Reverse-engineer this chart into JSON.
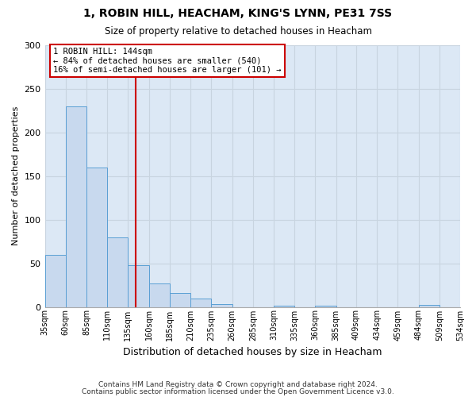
{
  "title": "1, ROBIN HILL, HEACHAM, KING'S LYNN, PE31 7SS",
  "subtitle": "Size of property relative to detached houses in Heacham",
  "xlabel": "Distribution of detached houses by size in Heacham",
  "ylabel": "Number of detached properties",
  "bin_edges": [
    35,
    60,
    85,
    110,
    135,
    160,
    185,
    210,
    235,
    260,
    285,
    310,
    335,
    360,
    385,
    409,
    434,
    459,
    484,
    509,
    534
  ],
  "counts": [
    60,
    230,
    160,
    80,
    48,
    27,
    16,
    10,
    3,
    0,
    0,
    1,
    0,
    1,
    0,
    0,
    0,
    0,
    2,
    0
  ],
  "bar_color": "#c8d9ee",
  "bar_edge_color": "#5a9fd4",
  "vline_x": 144,
  "vline_color": "#cc0000",
  "annotation_line1": "1 ROBIN HILL: 144sqm",
  "annotation_line2": "← 84% of detached houses are smaller (540)",
  "annotation_line3": "16% of semi-detached houses are larger (101) →",
  "annotation_box_color": "#ffffff",
  "annotation_box_edge_color": "#cc0000",
  "ylim": [
    0,
    300
  ],
  "yticks": [
    0,
    50,
    100,
    150,
    200,
    250,
    300
  ],
  "bg_color": "#dce8f5",
  "grid_color": "#c8d4e0",
  "footer1": "Contains HM Land Registry data © Crown copyright and database right 2024.",
  "footer2": "Contains public sector information licensed under the Open Government Licence v3.0."
}
